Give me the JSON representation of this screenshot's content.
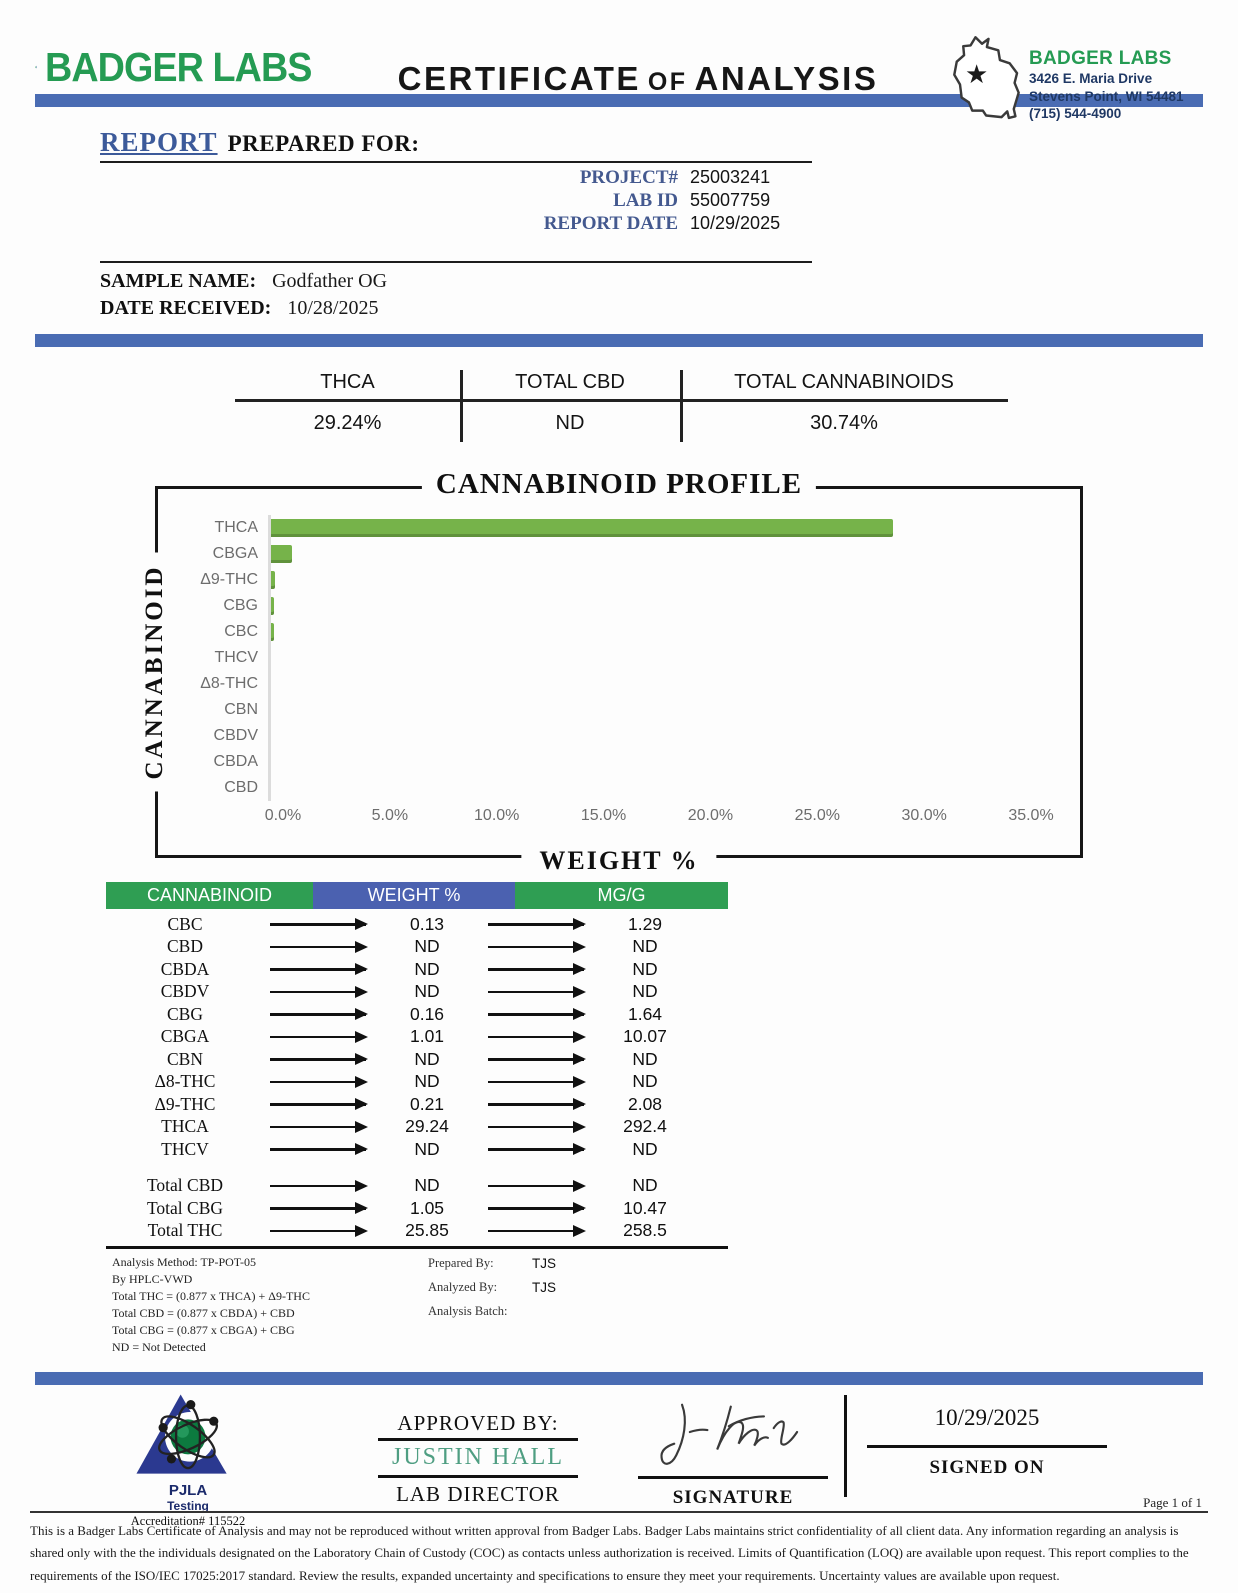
{
  "colors": {
    "accent_blue": "#4a6cb3",
    "brand_green": "#259b53",
    "bar_green": "#76b34a",
    "table_header_green": "#2f9e53",
    "table_header_blue": "#4b61b0",
    "approver_teal": "#4f9e82",
    "navy_text": "#1f3864"
  },
  "header": {
    "brand": "BADGER LABS",
    "title_part1": "CERTIFICATE",
    "title_of": "OF",
    "title_part2": "ANALYSIS",
    "lab_info": {
      "name": "BADGER LABS",
      "address_line1": "3426 E. Maria Drive",
      "address_line2": "Stevens Point, WI 54481",
      "phone": "(715) 544-4900"
    }
  },
  "report": {
    "report_word": "REPORT",
    "prepared_for": "PREPARED FOR:",
    "fields": [
      {
        "label": "PROJECT#",
        "value": "25003241"
      },
      {
        "label": "LAB ID",
        "value": "55007759"
      },
      {
        "label": "REPORT DATE",
        "value": "10/29/2025"
      }
    ],
    "sample_name_label": "SAMPLE NAME:",
    "sample_name": "Godfather OG",
    "date_received_label": "DATE RECEIVED:",
    "date_received": "10/28/2025"
  },
  "summary": {
    "columns": [
      {
        "label": "THCA",
        "value": "29.24%"
      },
      {
        "label": "TOTAL CBD",
        "value": "ND"
      },
      {
        "label": "TOTAL CANNABINOIDS",
        "value": "30.74%"
      }
    ]
  },
  "chart_data": {
    "type": "bar",
    "orientation": "horizontal",
    "title": "CANNABINOID PROFILE",
    "xlabel": "WEIGHT %",
    "ylabel": "CANNABINOID",
    "categories": [
      "THCA",
      "CBGA",
      "Δ9-THC",
      "CBG",
      "CBC",
      "THCV",
      "Δ8-THC",
      "CBN",
      "CBDV",
      "CBDA",
      "CBD"
    ],
    "values": [
      29.24,
      1.01,
      0.21,
      0.16,
      0.13,
      0,
      0,
      0,
      0,
      0,
      0
    ],
    "x_ticks": [
      "0.0%",
      "5.0%",
      "10.0%",
      "15.0%",
      "20.0%",
      "25.0%",
      "30.0%",
      "35.0%"
    ],
    "xlim": [
      0,
      35
    ],
    "grid": false,
    "legend": false,
    "bar_color": "#76b34a"
  },
  "results_table": {
    "headers": [
      "CANNABINOID",
      "WEIGHT %",
      "MG/G"
    ],
    "header_colors": [
      "#2f9e53",
      "#4b61b0",
      "#2f9e53"
    ],
    "rows": [
      [
        "CBC",
        "0.13",
        "1.29"
      ],
      [
        "CBD",
        "ND",
        "ND"
      ],
      [
        "CBDA",
        "ND",
        "ND"
      ],
      [
        "CBDV",
        "ND",
        "ND"
      ],
      [
        "CBG",
        "0.16",
        "1.64"
      ],
      [
        "CBGA",
        "1.01",
        "10.07"
      ],
      [
        "CBN",
        "ND",
        "ND"
      ],
      [
        "Δ8-THC",
        "ND",
        "ND"
      ],
      [
        "Δ9-THC",
        "0.21",
        "2.08"
      ],
      [
        "THCA",
        "29.24",
        "292.4"
      ],
      [
        "THCV",
        "ND",
        "ND"
      ]
    ],
    "total_rows": [
      [
        "Total CBD",
        "ND",
        "ND"
      ],
      [
        "Total CBG",
        "1.05",
        "10.47"
      ],
      [
        "Total THC",
        "25.85",
        "258.5"
      ]
    ]
  },
  "footnotes": {
    "left": [
      "Analysis Method: TP-POT-05",
      "By HPLC-VWD",
      "Total THC = (0.877 x  THCA) + Δ9-THC",
      "Total CBD = (0.877 x  CBDA) + CBD",
      "Total CBG = (0.877 x  CBGA) + CBG",
      "ND = Not Detected"
    ],
    "right": [
      {
        "label": "Prepared By:",
        "value": "TJS"
      },
      {
        "label": "Analyzed By:",
        "value": "TJS"
      },
      {
        "label": "Analysis Batch:",
        "value": ""
      }
    ]
  },
  "signature_section": {
    "accreditation_org": "PJLA",
    "accreditation_sub": "Testing",
    "accreditation_number": "Accreditation# 115522",
    "approved_by_label": "APPROVED BY:",
    "approver_name": "JUSTIN HALL",
    "approver_title": "LAB DIRECTOR",
    "signature_label": "SIGNATURE",
    "signed_on_date": "10/29/2025",
    "signed_on_label": "SIGNED ON"
  },
  "footer": {
    "page": "Page 1 of 1",
    "disclaimer": "This is a Badger Labs Certificate of Analysis and may not be reproduced without written approval from Badger Labs. Badger Labs maintains strict confidentiality of all client data. Any information regarding an analysis is shared only with the the individuals designated on the Laboratory Chain of Custody (COC) as contacts unless authorization is received. Limits of Quantification (LOQ) are available upon request. This report complies to the requirements of the ISO/IEC 17025:2017 standard. Review the results, expanded uncertainty and specifications to ensure they meet your requirements. Uncertainty values are available upon request."
  }
}
